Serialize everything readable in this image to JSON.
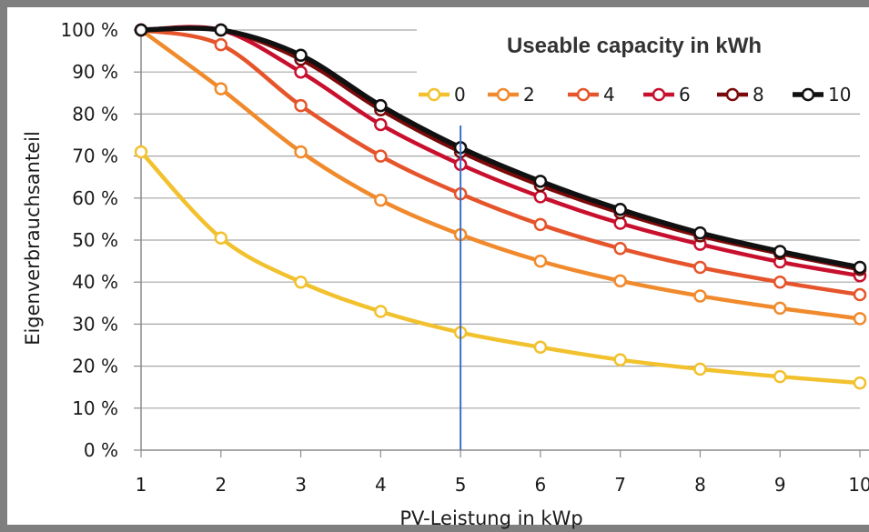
{
  "chart_data": {
    "type": "line",
    "title": "",
    "xlabel": "PV-Leistung in kWp",
    "ylabel": "Eigenverbrauchsanteil",
    "x": [
      1,
      2,
      3,
      4,
      5,
      6,
      7,
      8,
      9,
      10
    ],
    "x_tick_labels": [
      "1",
      "2",
      "3",
      "4",
      "5",
      "6",
      "7",
      "8",
      "9",
      "10"
    ],
    "y_tick_labels": [
      "0 %",
      "10 %",
      "20 %",
      "30 %",
      "40 %",
      "50 %",
      "60 %",
      "70 %",
      "80 %",
      "90 %",
      "100 %"
    ],
    "xlim": [
      1,
      10
    ],
    "ylim": [
      0,
      100
    ],
    "grid": "horizontal",
    "legend_title": "Useable capacity in kWh",
    "legend_position": "top-right",
    "marker_line_x": 5,
    "series": [
      {
        "name": "0",
        "color": "#f2c12e",
        "values": [
          71,
          50.5,
          40,
          33,
          28,
          24.5,
          21.5,
          19.3,
          17.5,
          16
        ]
      },
      {
        "name": "2",
        "color": "#f08a2c",
        "values": [
          100,
          86,
          71,
          59.5,
          51.3,
          45,
          40.3,
          36.7,
          33.8,
          31.3
        ]
      },
      {
        "name": "4",
        "color": "#e5542a",
        "values": [
          100,
          96.5,
          82,
          70,
          61,
          53.7,
          48,
          43.5,
          40,
          37
        ]
      },
      {
        "name": "6",
        "color": "#c8102e",
        "values": [
          100,
          100,
          90,
          77.5,
          68,
          60.3,
          54,
          49,
          44.8,
          41.5
        ]
      },
      {
        "name": "8",
        "color": "#7a0a0a",
        "values": [
          100,
          100,
          93,
          81,
          71,
          63,
          56.5,
          51,
          46.8,
          43
        ]
      },
      {
        "name": "10",
        "color": "#111111",
        "values": [
          100,
          100,
          94,
          82,
          72,
          64,
          57.3,
          51.7,
          47.3,
          43.5
        ]
      }
    ]
  }
}
